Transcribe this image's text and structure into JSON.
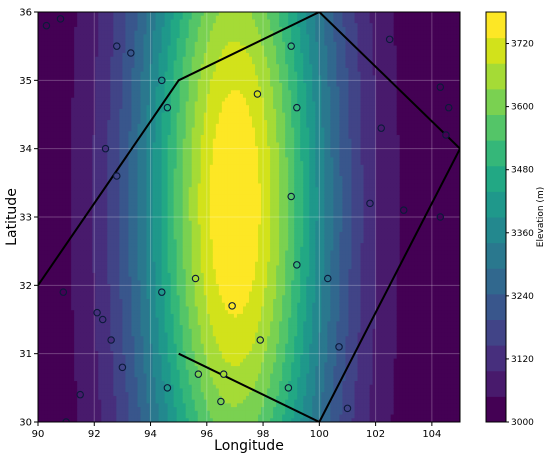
{
  "chart_data": {
    "type": "contour",
    "xlabel": "Longitude",
    "ylabel": "Latitude",
    "xlim": [
      90,
      105
    ],
    "ylim": [
      30,
      36
    ],
    "x_ticks": [
      90,
      92,
      94,
      96,
      98,
      100,
      102,
      104
    ],
    "y_ticks": [
      30,
      31,
      32,
      33,
      34,
      35,
      36
    ],
    "grid": true,
    "colorbar": {
      "label": "Elevation (m)",
      "min": 3000,
      "max": 3780,
      "ticks": [
        3000,
        3120,
        3240,
        3360,
        3480,
        3600,
        3720
      ],
      "levels": [
        3000,
        3040,
        3080,
        3120,
        3160,
        3200,
        3240,
        3280,
        3320,
        3360,
        3400,
        3440,
        3480,
        3520,
        3560,
        3600,
        3640,
        3680,
        3720,
        3760,
        3780
      ],
      "colors": [
        "#440154",
        "#481a6c",
        "#472f7d",
        "#414487",
        "#39568c",
        "#31688e",
        "#2a788e",
        "#23888e",
        "#1f988b",
        "#22a884",
        "#35b779",
        "#54c568",
        "#7ad151",
        "#a5db36",
        "#d2e21b",
        "#fde725"
      ]
    },
    "field": {
      "center": [
        97,
        33.2
      ],
      "peak": 3780,
      "base": 3000,
      "sigma_x": 3.5,
      "sigma_y": 6.5
    },
    "boundary_outer": [
      [
        90,
        32
      ],
      [
        95,
        35
      ],
      [
        100,
        36
      ],
      [
        105,
        34
      ],
      [
        100,
        30
      ]
    ],
    "boundary_inner": [
      [
        95,
        31
      ],
      [
        100,
        30
      ]
    ],
    "stations": [
      [
        90.3,
        35.8
      ],
      [
        90.8,
        35.9
      ],
      [
        92.8,
        35.5
      ],
      [
        93.3,
        35.4
      ],
      [
        94.4,
        35.0
      ],
      [
        94.6,
        34.6
      ],
      [
        92.4,
        34.0
      ],
      [
        92.8,
        33.6
      ],
      [
        97.8,
        34.8
      ],
      [
        99.0,
        35.5
      ],
      [
        99.2,
        34.6
      ],
      [
        102.5,
        35.6
      ],
      [
        102.2,
        34.3
      ],
      [
        104.3,
        34.9
      ],
      [
        104.6,
        34.6
      ],
      [
        104.5,
        34.2
      ],
      [
        101.8,
        33.2
      ],
      [
        103.0,
        33.1
      ],
      [
        104.3,
        33.0
      ],
      [
        99.0,
        33.3
      ],
      [
        99.2,
        32.3
      ],
      [
        100.3,
        32.1
      ],
      [
        95.6,
        32.1
      ],
      [
        94.4,
        31.9
      ],
      [
        90.9,
        31.9
      ],
      [
        92.1,
        31.6
      ],
      [
        92.3,
        31.5
      ],
      [
        92.6,
        31.2
      ],
      [
        96.9,
        31.7
      ],
      [
        97.9,
        31.2
      ],
      [
        100.7,
        31.1
      ],
      [
        93.0,
        30.8
      ],
      [
        94.6,
        30.5
      ],
      [
        95.7,
        30.7
      ],
      [
        96.6,
        30.7
      ],
      [
        98.9,
        30.5
      ],
      [
        96.5,
        30.3
      ],
      [
        101.0,
        30.2
      ],
      [
        91.5,
        30.4
      ],
      [
        91.0,
        30.0
      ]
    ]
  }
}
